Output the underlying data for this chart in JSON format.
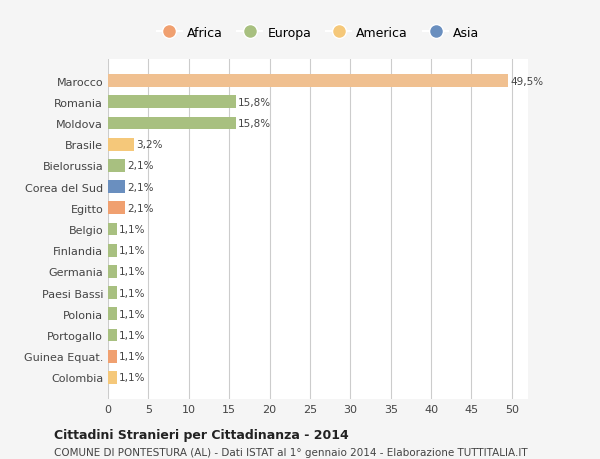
{
  "categories": [
    "Colombia",
    "Guinea Equat.",
    "Portogallo",
    "Polonia",
    "Paesi Bassi",
    "Germania",
    "Finlandia",
    "Belgio",
    "Egitto",
    "Corea del Sud",
    "Bielorussia",
    "Brasile",
    "Moldova",
    "Romania",
    "Marocco"
  ],
  "values": [
    1.1,
    1.1,
    1.1,
    1.1,
    1.1,
    1.1,
    1.1,
    1.1,
    2.1,
    2.1,
    2.1,
    3.2,
    15.8,
    15.8,
    49.5
  ],
  "labels": [
    "1,1%",
    "1,1%",
    "1,1%",
    "1,1%",
    "1,1%",
    "1,1%",
    "1,1%",
    "1,1%",
    "2,1%",
    "2,1%",
    "2,1%",
    "3,2%",
    "15,8%",
    "15,8%",
    "49,5%"
  ],
  "colors": [
    "#f5c87a",
    "#f0a070",
    "#a8c080",
    "#a8c080",
    "#a8c080",
    "#a8c080",
    "#a8c080",
    "#a8c080",
    "#f0a070",
    "#6a8fbf",
    "#a8c080",
    "#f5c87a",
    "#a8c080",
    "#a8c080",
    "#f0c090"
  ],
  "legend_labels": [
    "Africa",
    "Europa",
    "America",
    "Asia"
  ],
  "legend_colors": [
    "#f0a070",
    "#a8c080",
    "#f5c87a",
    "#6a8fbf"
  ],
  "title": "Cittadini Stranieri per Cittadinanza - 2014",
  "subtitle": "COMUNE DI PONTESTURA (AL) - Dati ISTAT al 1° gennaio 2014 - Elaborazione TUTTITALIA.IT",
  "xlim": [
    0,
    52
  ],
  "xticks": [
    0,
    5,
    10,
    15,
    20,
    25,
    30,
    35,
    40,
    45,
    50
  ],
  "bg_color": "#f5f5f5",
  "bar_bg_color": "#ffffff",
  "grid_color": "#cccccc"
}
